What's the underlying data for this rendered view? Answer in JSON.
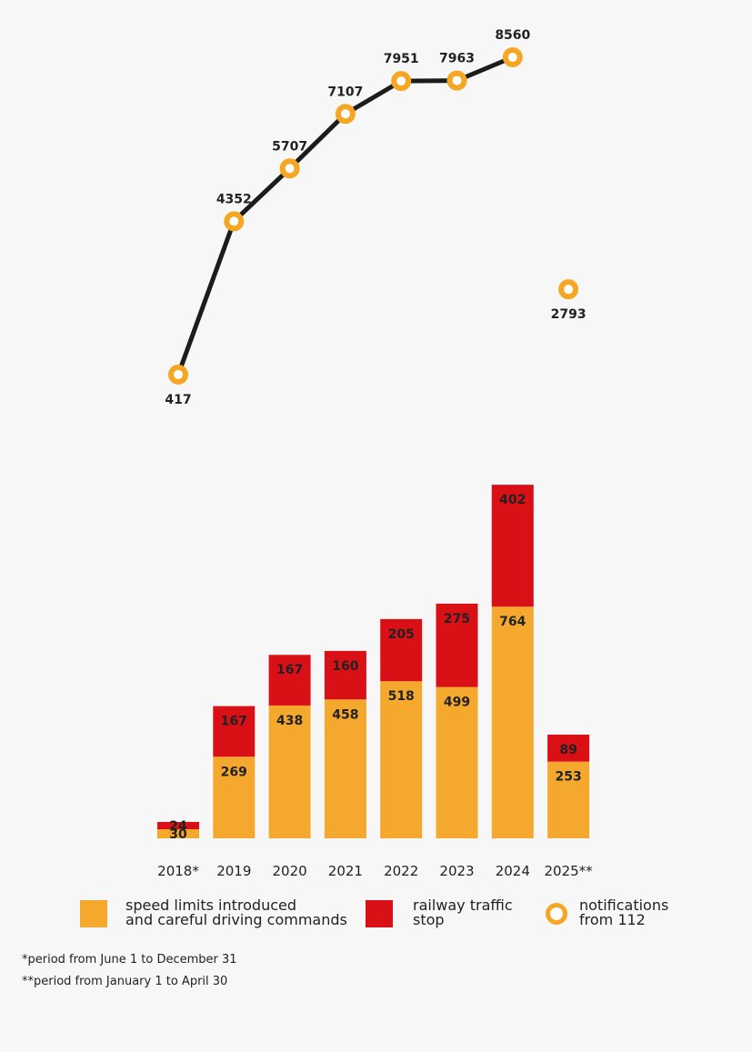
{
  "chart_data": {
    "type": "bar",
    "stacked": true,
    "title": "",
    "xlabel": "",
    "ylabel": "",
    "categories": [
      "2018*",
      "2019",
      "2020",
      "2021",
      "2022",
      "2023",
      "2024",
      "2025**"
    ],
    "series": [
      {
        "name": "speed limits introduced and careful driving commands",
        "type": "bar",
        "color": "#f5a82e",
        "values": [
          30,
          269,
          438,
          458,
          518,
          499,
          764,
          253
        ]
      },
      {
        "name": "railway traffic stop",
        "type": "bar",
        "color": "#d91016",
        "values": [
          24,
          167,
          167,
          160,
          205,
          275,
          402,
          89
        ]
      },
      {
        "name": "notifications from 112",
        "type": "line",
        "color": "#1c1c1c",
        "marker_color": "#f5a623",
        "values": [
          417,
          4352,
          5707,
          7107,
          7951,
          7963,
          8560,
          2793
        ],
        "connected_through_index": 6
      }
    ],
    "bar_ylim": [
      0,
      1200
    ],
    "line_ylim": [
      -3250,
      8560
    ],
    "grid": false,
    "legend_position": "bottom"
  },
  "legend": {
    "speed": {
      "line1": "speed limits introduced",
      "line2": "and careful driving commands",
      "color": "#f5a82e"
    },
    "stop": {
      "line1": "railway traffic",
      "line2": "stop",
      "color": "#d91016"
    },
    "notifications": {
      "line1": "notifications",
      "line2": "from 112",
      "color": "#f5a623"
    }
  },
  "notes": {
    "note1": "*period from June 1 to December 31",
    "note2": "**period from January 1 to April 30"
  }
}
